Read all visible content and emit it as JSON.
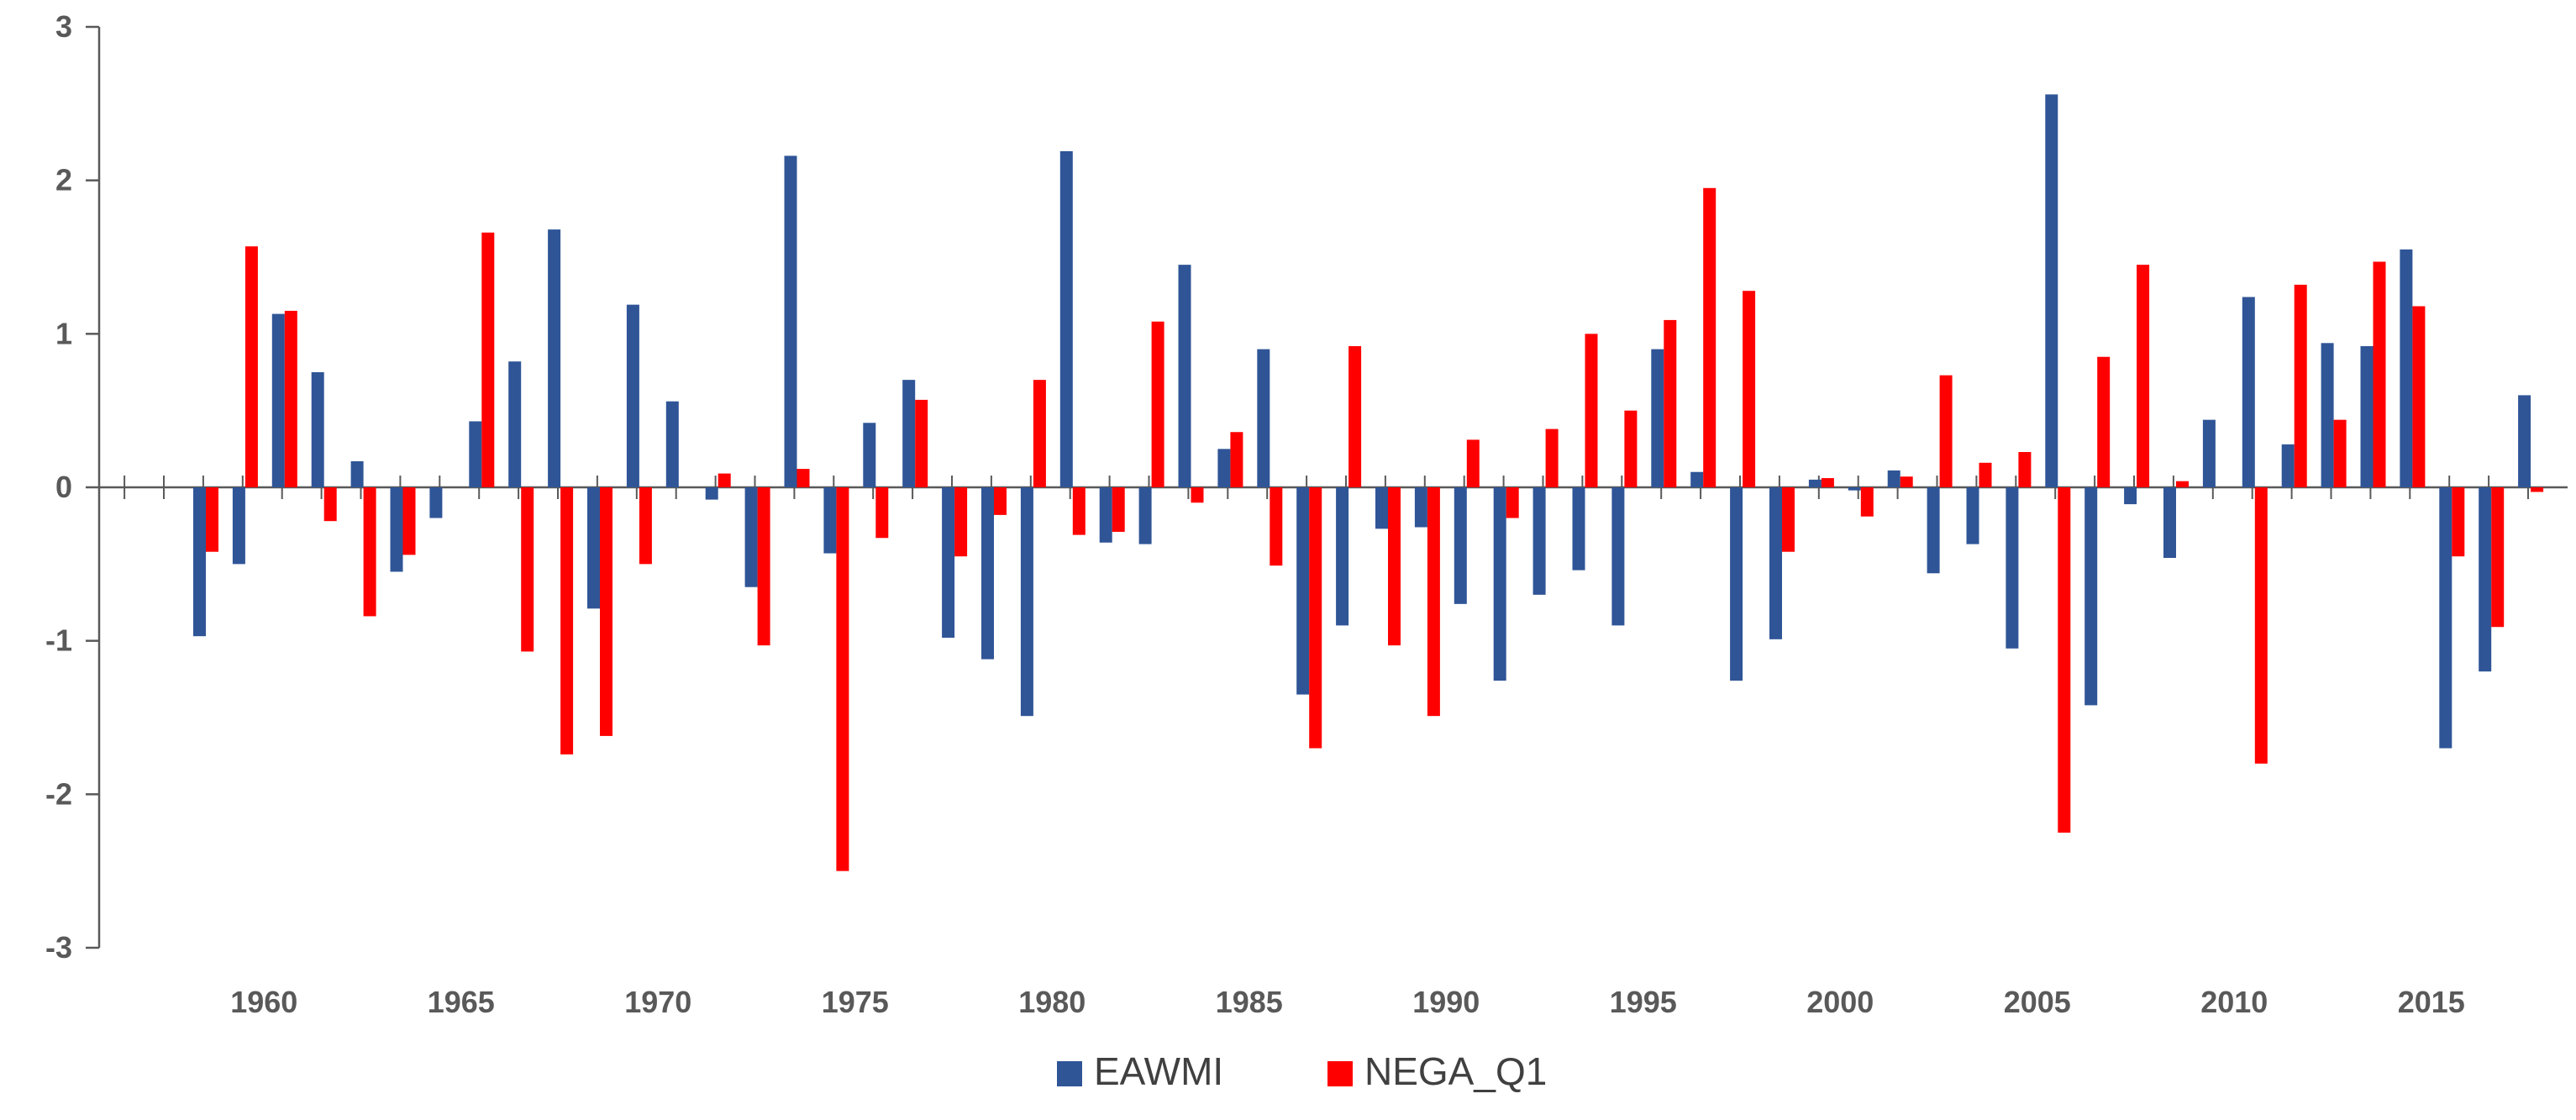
{
  "chart_data": {
    "type": "bar",
    "title": "",
    "xlabel": "",
    "ylabel": "",
    "ylim": [
      -3,
      3
    ],
    "yticks": [
      -3,
      -2,
      -1,
      0,
      1,
      2,
      3
    ],
    "ytick_labels": [
      "-3",
      "-2",
      "-1",
      "0",
      "1",
      "2",
      "3"
    ],
    "x": [
      1958,
      1959,
      1960,
      1961,
      1962,
      1963,
      1964,
      1965,
      1966,
      1967,
      1968,
      1969,
      1970,
      1971,
      1972,
      1973,
      1974,
      1975,
      1976,
      1977,
      1978,
      1979,
      1980,
      1981,
      1982,
      1983,
      1984,
      1985,
      1986,
      1987,
      1988,
      1989,
      1990,
      1991,
      1992,
      1993,
      1994,
      1995,
      1996,
      1997,
      1998,
      1999,
      2000,
      2001,
      2002,
      2003,
      2004,
      2005,
      2006,
      2007,
      2008,
      2009,
      2010,
      2011,
      2012,
      2013,
      2014,
      2015,
      2016,
      2017
    ],
    "x_label_years": [
      1960,
      1965,
      1970,
      1975,
      1980,
      1985,
      1990,
      1995,
      2000,
      2005,
      2010,
      2015
    ],
    "xtick_labels": [
      "1960",
      "1965",
      "1970",
      "1975",
      "1980",
      "1985",
      "1990",
      "1995",
      "2000",
      "2005",
      "2010",
      "2015"
    ],
    "series": [
      {
        "name": "EAWMI",
        "color": "#2F5597",
        "values": [
          -0.97,
          -0.5,
          1.13,
          0.75,
          0.17,
          -0.55,
          -0.2,
          0.43,
          0.82,
          1.68,
          -0.79,
          1.19,
          0.56,
          -0.08,
          -0.65,
          2.16,
          -0.43,
          0.42,
          0.7,
          -0.98,
          -1.12,
          -1.49,
          2.19,
          -0.36,
          -0.37,
          1.45,
          0.25,
          0.9,
          -1.35,
          -0.9,
          -0.27,
          -0.26,
          -0.76,
          -1.26,
          -0.7,
          -0.54,
          -0.9,
          0.9,
          0.1,
          -1.26,
          -0.99,
          0.05,
          -0.02,
          0.11,
          -0.56,
          -0.37,
          -1.05,
          2.56,
          -1.42,
          -0.11,
          -0.46,
          0.44,
          1.24,
          0.28,
          0.94,
          0.92,
          1.55,
          -1.7,
          -1.2,
          0.6
        ]
      },
      {
        "name": "NEGA_Q1",
        "color": "#FF0000",
        "values": [
          -0.42,
          1.57,
          1.15,
          -0.22,
          -0.84,
          -0.44,
          0.0,
          1.66,
          -1.07,
          -1.74,
          -1.62,
          -0.5,
          0.0,
          0.09,
          -1.03,
          0.12,
          -2.5,
          -0.33,
          0.57,
          -0.45,
          -0.18,
          0.7,
          -0.31,
          -0.29,
          1.08,
          -0.1,
          0.36,
          -0.51,
          -1.7,
          0.92,
          -1.03,
          -1.49,
          0.31,
          -0.2,
          0.38,
          1.0,
          0.5,
          1.09,
          1.95,
          1.28,
          -0.42,
          0.06,
          -0.19,
          0.07,
          0.73,
          0.16,
          0.23,
          -2.25,
          0.85,
          1.45,
          0.04,
          0.0,
          -1.8,
          1.32,
          0.44,
          1.47,
          1.18,
          -0.45,
          -0.91,
          -0.03
        ]
      }
    ],
    "legend": {
      "position": "bottom-center",
      "entries": [
        "EAWMI",
        "NEGA_Q1"
      ]
    },
    "grid": false
  }
}
